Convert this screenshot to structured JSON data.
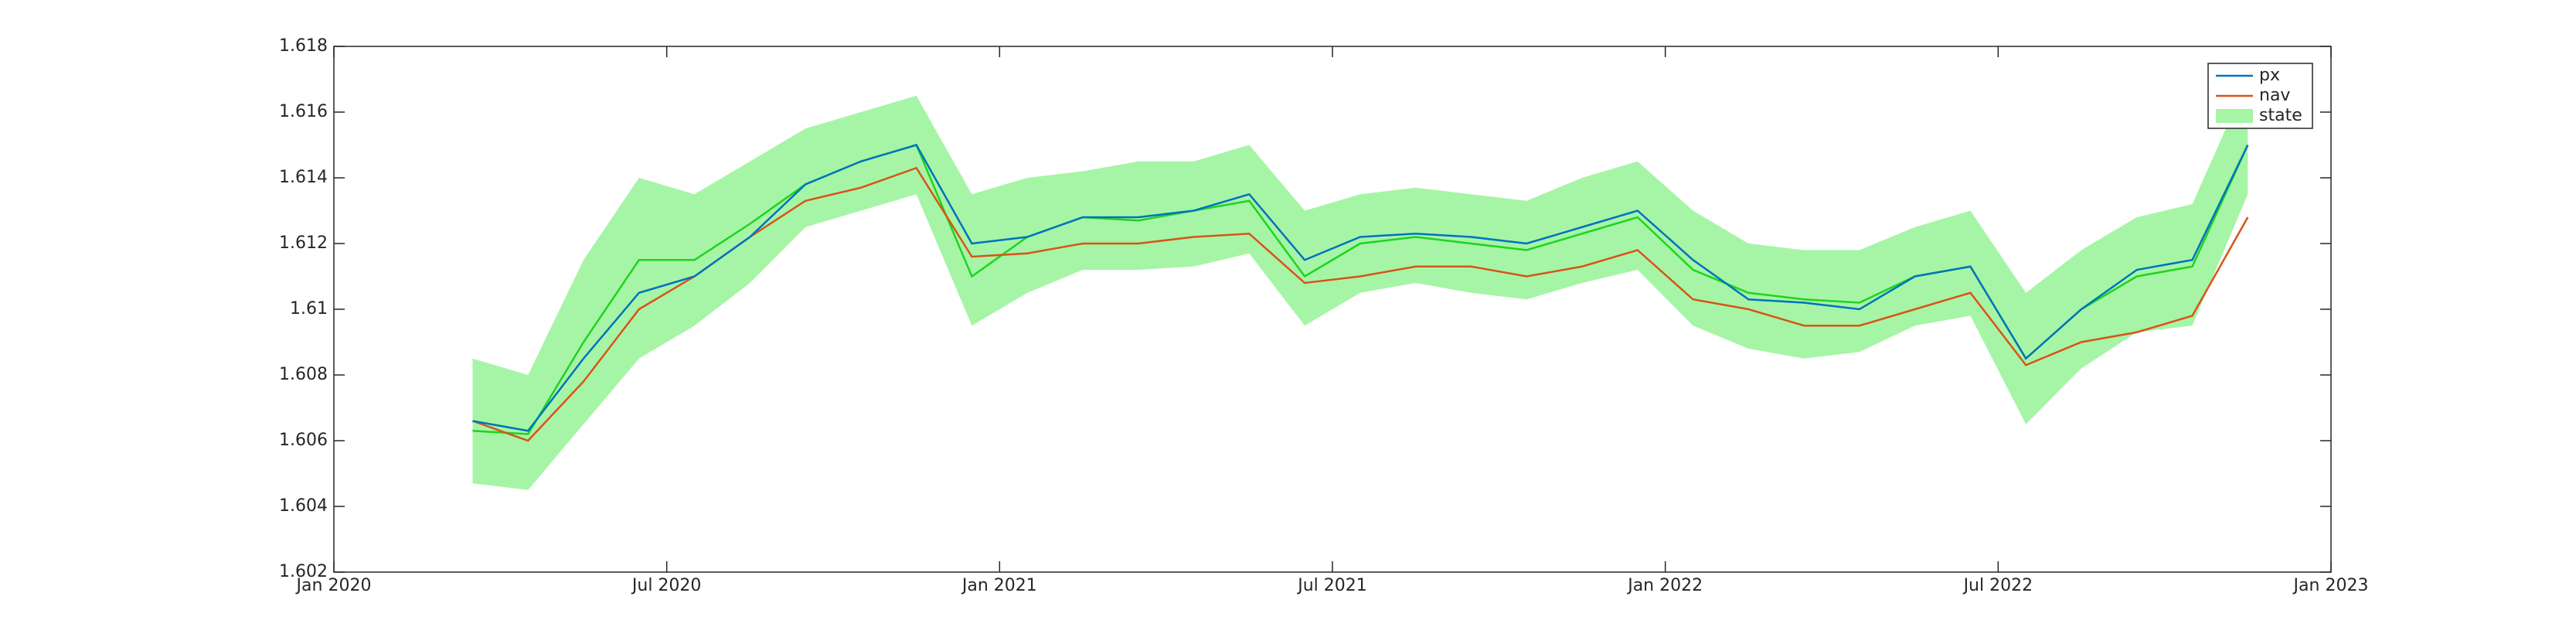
{
  "chart_data": {
    "type": "line",
    "x": [
      "2020-03",
      "2020-04",
      "2020-05",
      "2020-06",
      "2020-07",
      "2020-08",
      "2020-09",
      "2020-10",
      "2020-11",
      "2020-12",
      "2021-01",
      "2021-02",
      "2021-03",
      "2021-04",
      "2021-05",
      "2021-06",
      "2021-07",
      "2021-08",
      "2021-09",
      "2021-10",
      "2021-11",
      "2021-12",
      "2022-01",
      "2022-02",
      "2022-03",
      "2022-04",
      "2022-05",
      "2022-06",
      "2022-07",
      "2022-08",
      "2022-09",
      "2022-10",
      "2022-11"
    ],
    "series": [
      {
        "name": "px",
        "color": "#0072bd",
        "values": [
          1.6066,
          1.6063,
          1.6085,
          1.6105,
          1.611,
          1.6122,
          1.6138,
          1.6145,
          1.615,
          1.612,
          1.6122,
          1.6128,
          1.6128,
          1.613,
          1.6135,
          1.6115,
          1.6122,
          1.6123,
          1.6122,
          1.612,
          1.6125,
          1.613,
          1.6115,
          1.6103,
          1.6102,
          1.61,
          1.611,
          1.6113,
          1.6085,
          1.61,
          1.6112,
          1.6115,
          1.615
        ]
      },
      {
        "name": "nav",
        "color": "#d95319",
        "values": [
          1.6066,
          1.606,
          1.6078,
          1.61,
          1.611,
          1.6122,
          1.6133,
          1.6137,
          1.6143,
          1.6116,
          1.6117,
          1.612,
          1.612,
          1.6122,
          1.6123,
          1.6108,
          1.611,
          1.6113,
          1.6113,
          1.611,
          1.6113,
          1.6118,
          1.6103,
          1.61,
          1.6095,
          1.6095,
          1.61,
          1.6105,
          1.6083,
          1.609,
          1.6093,
          1.6098,
          1.6128
        ]
      },
      {
        "name": "state",
        "color": "#a6f5a6",
        "line_color": "#1ed41e",
        "values": [
          1.6063,
          1.6062,
          1.609,
          1.6115,
          1.6115,
          1.6126,
          1.6138,
          1.6145,
          1.615,
          1.611,
          1.6122,
          1.6128,
          1.6127,
          1.613,
          1.6133,
          1.611,
          1.612,
          1.6122,
          1.612,
          1.6118,
          1.6123,
          1.6128,
          1.6112,
          1.6105,
          1.6103,
          1.6102,
          1.611,
          1.6113,
          1.6085,
          1.61,
          1.611,
          1.6113,
          1.615
        ],
        "lower": [
          1.6047,
          1.6045,
          1.6065,
          1.6085,
          1.6095,
          1.6108,
          1.6125,
          1.613,
          1.6135,
          1.6095,
          1.6105,
          1.6112,
          1.6112,
          1.6113,
          1.6117,
          1.6095,
          1.6105,
          1.6108,
          1.6105,
          1.6103,
          1.6108,
          1.6112,
          1.6095,
          1.6088,
          1.6085,
          1.6087,
          1.6095,
          1.6098,
          1.6065,
          1.6082,
          1.6093,
          1.6095,
          1.6135
        ],
        "upper": [
          1.6085,
          1.608,
          1.6115,
          1.614,
          1.6135,
          1.6145,
          1.6155,
          1.616,
          1.6165,
          1.6135,
          1.614,
          1.6142,
          1.6145,
          1.6145,
          1.615,
          1.613,
          1.6135,
          1.6137,
          1.6135,
          1.6133,
          1.614,
          1.6145,
          1.613,
          1.612,
          1.6118,
          1.6118,
          1.6125,
          1.613,
          1.6105,
          1.6118,
          1.6128,
          1.6132,
          1.617
        ]
      }
    ],
    "xlim": [
      "2020-01",
      "2023-01"
    ],
    "xticks": [
      {
        "value": "2020-01",
        "label": "Jan 2020"
      },
      {
        "value": "2020-07",
        "label": "Jul 2020"
      },
      {
        "value": "2021-01",
        "label": "Jan 2021"
      },
      {
        "value": "2021-07",
        "label": "Jul 2021"
      },
      {
        "value": "2022-01",
        "label": "Jan 2022"
      },
      {
        "value": "2022-07",
        "label": "Jul 2022"
      },
      {
        "value": "2023-01",
        "label": "Jan 2023"
      }
    ],
    "ylim": [
      1.602,
      1.618
    ],
    "yticks": [
      1.602,
      1.604,
      1.606,
      1.608,
      1.61,
      1.612,
      1.614,
      1.616,
      1.618
    ],
    "legend": "upper right"
  }
}
